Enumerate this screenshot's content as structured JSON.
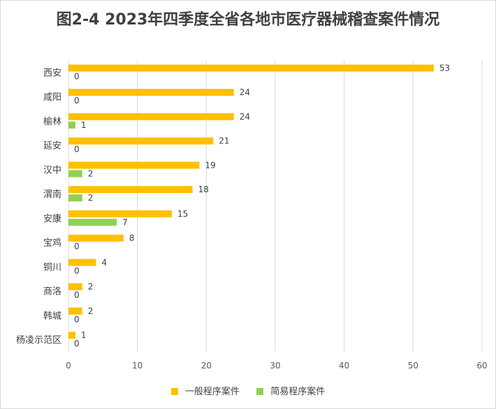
{
  "chart_data": {
    "type": "bar",
    "orientation": "horizontal",
    "title": "图2-4  2023年四季度全省各地市医疗器械稽查案件情况",
    "categories": [
      "西安",
      "咸阳",
      "榆林",
      "延安",
      "汉中",
      "渭南",
      "安康",
      "宝鸡",
      "铜川",
      "商洛",
      "韩城",
      "杨凌示范区"
    ],
    "series": [
      {
        "name": "一般程序案件",
        "color": "#FFC000",
        "values": [
          53,
          24,
          24,
          21,
          19,
          18,
          15,
          8,
          4,
          2,
          2,
          1
        ]
      },
      {
        "name": "简易程序案件",
        "color": "#92D050",
        "values": [
          0,
          0,
          1,
          0,
          2,
          2,
          7,
          0,
          0,
          0,
          0,
          0
        ]
      }
    ],
    "xlim": [
      0,
      60
    ],
    "xticks": [
      0,
      10,
      20,
      30,
      40,
      50,
      60
    ],
    "grid": true,
    "legend_position": "bottom"
  }
}
